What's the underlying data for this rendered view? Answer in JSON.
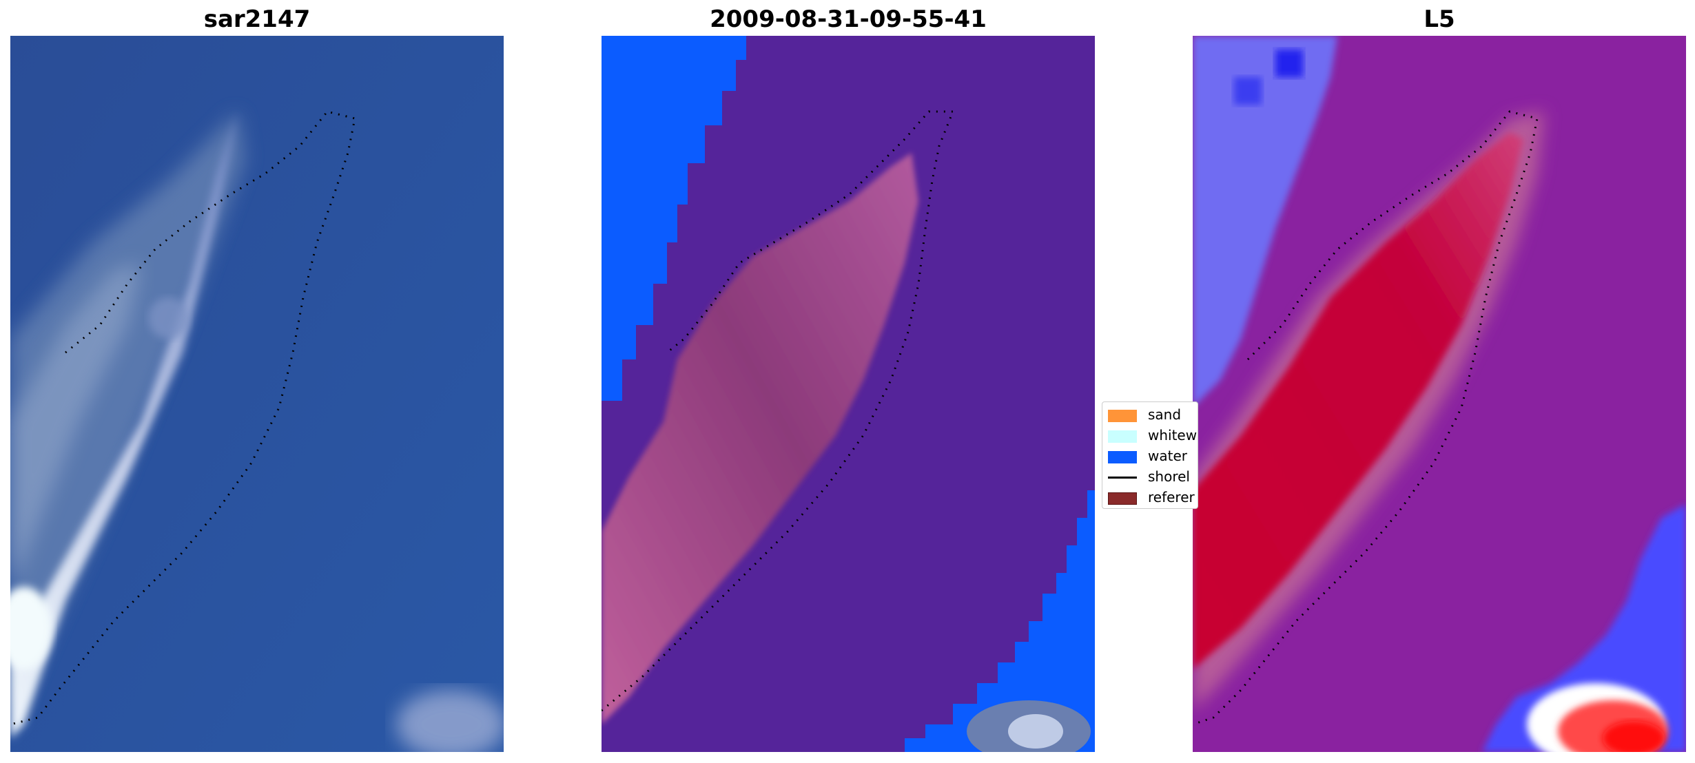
{
  "panels": [
    {
      "title": "sar2147"
    },
    {
      "title": "2009-08-31-09-55-41"
    },
    {
      "title": "L5"
    }
  ],
  "legend": {
    "items": [
      {
        "label": "sand",
        "color": "#ff9438",
        "kind": "patch"
      },
      {
        "label": "whitew",
        "color": "#c9ffff",
        "kind": "patch"
      },
      {
        "label": "water",
        "color": "#0b5cff",
        "kind": "patch"
      },
      {
        "label": "shorel",
        "color": "#000000",
        "kind": "line"
      },
      {
        "label": "referer",
        "color": "#8a2a2a",
        "kind": "patch"
      }
    ]
  },
  "colors": {
    "rgb_water": "#2a4f99",
    "rgb_shoal": "#b8c4e0",
    "class_water": "#0b5cff",
    "class_other": "#55249a",
    "class_land": "#a24a8a",
    "index_bg": "#8a22a0",
    "index_high": "#c6002f",
    "index_low": "#4a4cff"
  }
}
